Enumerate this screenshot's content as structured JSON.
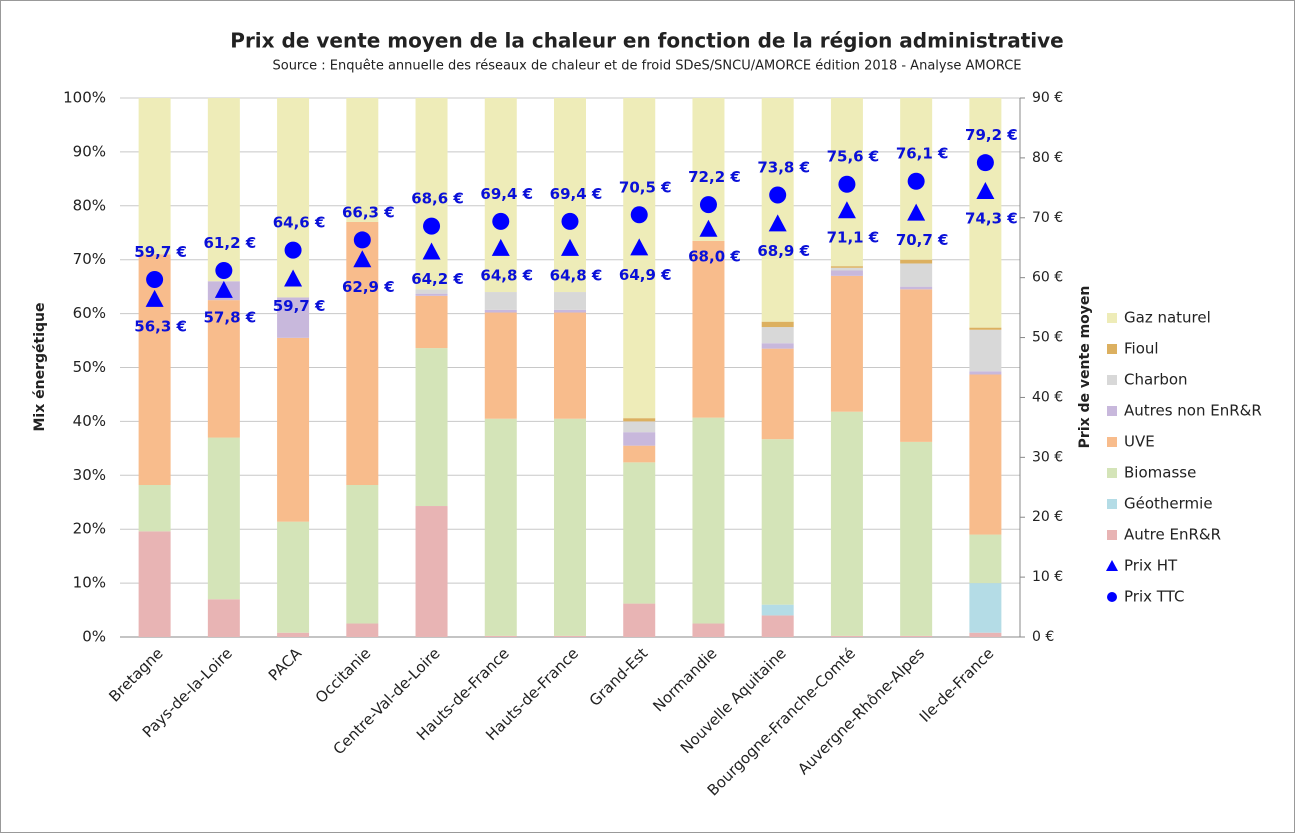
{
  "chart_data": {
    "type": "bar",
    "stacked": true,
    "title": "Prix de vente moyen de la chaleur en fonction de la région administrative",
    "subtitle": "Source : Enquête annuelle des réseaux de chaleur et de froid SDeS/SNCU/AMORCE édition 2018 - Analyse AMORCE",
    "ylabel": "Mix énergétique",
    "y2label": "Prix de vente moyen",
    "categories": [
      "Bretagne",
      "Pays-de-la-Loire",
      "PACA",
      "Occitanie",
      "Centre-Val-de-Loire",
      "Hauts-de-France",
      "Hauts-de-France",
      "Grand-Est",
      "Normandie",
      "Nouvelle Aquitaine",
      "Bourgogne-Franche-Comté",
      "Auvergne-Rhône-Alpes",
      "Ile-de-France"
    ],
    "ylim": [
      0,
      100
    ],
    "yticks": [
      {
        "value": 0,
        "label": "0%"
      },
      {
        "value": 10,
        "label": "10%"
      },
      {
        "value": 20,
        "label": "20%"
      },
      {
        "value": 30,
        "label": "30%"
      },
      {
        "value": 40,
        "label": "40%"
      },
      {
        "value": 50,
        "label": "50%"
      },
      {
        "value": 60,
        "label": "60%"
      },
      {
        "value": 70,
        "label": "70%"
      },
      {
        "value": 80,
        "label": "80%"
      },
      {
        "value": 90,
        "label": "90%"
      },
      {
        "value": 100,
        "label": "100%"
      }
    ],
    "y2lim": [
      0,
      90
    ],
    "y2ticks": [
      {
        "value": 0,
        "label": "0 €"
      },
      {
        "value": 10,
        "label": "10 €"
      },
      {
        "value": 20,
        "label": "20 €"
      },
      {
        "value": 30,
        "label": "30 €"
      },
      {
        "value": 40,
        "label": "40 €"
      },
      {
        "value": 50,
        "label": "50 €"
      },
      {
        "value": 60,
        "label": "60 €"
      },
      {
        "value": 70,
        "label": "70 €"
      },
      {
        "value": 80,
        "label": "80 €"
      },
      {
        "value": 90,
        "label": "90 €"
      }
    ],
    "grid": true,
    "legend": "right",
    "series": [
      {
        "name": "Autre EnR&R",
        "color": "#e8b4b4",
        "values": [
          19.6,
          7.0,
          0.8,
          2.5,
          24.3,
          0.2,
          0.2,
          6.2,
          2.5,
          4.0,
          0.2,
          0.2,
          0.8
        ]
      },
      {
        "name": "Géothermie",
        "color": "#b4dce6",
        "values": [
          0,
          0,
          0,
          0,
          0,
          0,
          0,
          0,
          0,
          2.0,
          0,
          0,
          9.2
        ]
      },
      {
        "name": "Biomasse",
        "color": "#d4e4b8",
        "values": [
          8.6,
          30.0,
          20.6,
          25.7,
          29.3,
          40.3,
          40.3,
          26.2,
          38.2,
          30.7,
          41.6,
          36.0,
          9.0
        ]
      },
      {
        "name": "UVE",
        "color": "#f8bc8c",
        "values": [
          42.8,
          25.5,
          34.1,
          48.8,
          9.7,
          19.7,
          19.7,
          3.1,
          32.8,
          16.8,
          25.2,
          28.3,
          29.7
        ]
      },
      {
        "name": "Autres non EnR&R",
        "color": "#c8b8dc",
        "values": [
          0,
          3.5,
          7.5,
          0,
          0.4,
          0.5,
          0.5,
          2.5,
          0,
          1.0,
          1.0,
          0.5,
          0.6
        ]
      },
      {
        "name": "Charbon",
        "color": "#d8d8d8",
        "values": [
          0,
          0,
          0,
          0,
          0.8,
          3.3,
          3.3,
          2.0,
          0,
          3.0,
          0.5,
          4.3,
          7.7
        ]
      },
      {
        "name": "Fioul",
        "color": "#dcb060",
        "values": [
          0,
          0,
          0,
          0,
          0,
          0,
          0,
          0.6,
          0,
          1.0,
          0.3,
          0.7,
          0.4
        ]
      },
      {
        "name": "Gaz naturel",
        "color": "#eeecb8",
        "values": [
          29.0,
          34.0,
          37.0,
          23.0,
          35.5,
          36.0,
          36.0,
          59.4,
          26.5,
          41.5,
          31.2,
          30.0,
          42.6
        ]
      },
      {
        "name": "Prix HT",
        "color": "#0000ff",
        "axis": "y2",
        "marker": "triangle",
        "values": [
          56.3,
          57.8,
          59.7,
          62.9,
          64.2,
          64.8,
          64.8,
          64.9,
          68.0,
          68.9,
          71.1,
          70.7,
          74.3
        ],
        "value_labels": [
          "56,3 €",
          "57,8 €",
          "59,7 €",
          "62,9 €",
          "64,2 €",
          "64,8 €",
          "64,8 €",
          "64,9 €",
          "68,0 €",
          "68,9 €",
          "71,1 €",
          "70,7 €",
          "74,3 €"
        ]
      },
      {
        "name": "Prix TTC",
        "color": "#0000ff",
        "axis": "y2",
        "marker": "circle",
        "values": [
          59.7,
          61.2,
          64.6,
          66.3,
          68.6,
          69.4,
          69.4,
          70.5,
          72.2,
          73.8,
          75.6,
          76.1,
          79.2
        ],
        "value_labels": [
          "59,7 €",
          "61,2 €",
          "64,6 €",
          "66,3 €",
          "68,6 €",
          "69,4 €",
          "69,4 €",
          "70,5 €",
          "72,2 €",
          "73,8 €",
          "75,6 €",
          "76,1 €",
          "79,2 €"
        ]
      }
    ]
  }
}
